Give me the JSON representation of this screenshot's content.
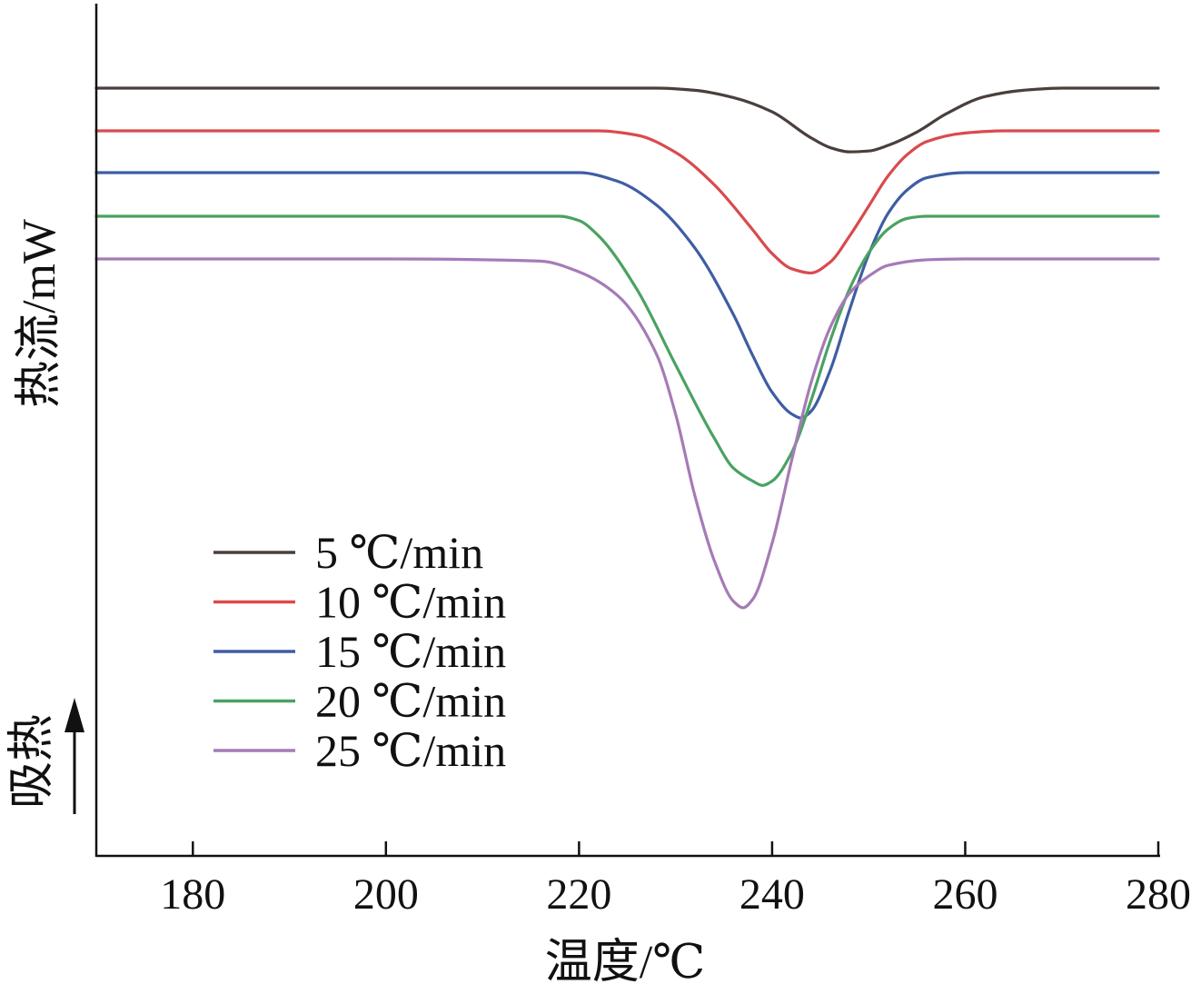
{
  "chart_data": {
    "type": "line",
    "xlabel": "温度/℃",
    "ylabel": "热流/mW",
    "endotherm_label": "吸热",
    "xlim": [
      170,
      280
    ],
    "x_ticks": [
      180,
      200,
      220,
      240,
      260,
      280
    ],
    "x_tick_labels": [
      "180",
      "200",
      "220",
      "240",
      "260",
      "280"
    ],
    "y_ticks_shown": false,
    "grid": false,
    "legend_position": "lower-left",
    "series": [
      {
        "name": "5 ℃/min",
        "color": "#4a3f3c",
        "x": [
          170,
          200,
          220,
          228,
          232,
          236,
          240,
          244,
          246,
          248,
          250,
          252,
          255,
          258,
          262,
          266,
          270,
          280
        ],
        "y": [
          0,
          0,
          0,
          0,
          -0.05,
          -0.22,
          -0.55,
          -1.15,
          -1.38,
          -1.48,
          -1.46,
          -1.33,
          -1.02,
          -0.6,
          -0.2,
          -0.05,
          0,
          0
        ]
      },
      {
        "name": "10 ℃/min",
        "color": "#d94a4d",
        "x": [
          170,
          200,
          222,
          226,
          230,
          234,
          238,
          240,
          242,
          244,
          246,
          248,
          250,
          252,
          254,
          256,
          260,
          264,
          270,
          280
        ],
        "y": [
          0,
          0,
          0,
          -0.1,
          -0.5,
          -1.25,
          -2.3,
          -2.85,
          -3.2,
          -3.3,
          -3.05,
          -2.45,
          -1.75,
          -1.05,
          -0.55,
          -0.25,
          -0.05,
          0,
          0,
          0
        ]
      },
      {
        "name": "15 ℃/min",
        "color": "#3f5da4",
        "x": [
          170,
          200,
          220,
          224,
          228,
          232,
          236,
          238,
          240,
          242,
          243,
          244,
          246,
          248,
          250,
          252,
          254,
          256,
          260,
          265,
          280
        ],
        "y": [
          0,
          0,
          0,
          -0.2,
          -0.75,
          -1.75,
          -3.3,
          -4.25,
          -5.1,
          -5.6,
          -5.7,
          -5.55,
          -4.6,
          -3.2,
          -1.9,
          -0.95,
          -0.4,
          -0.12,
          0,
          0,
          0
        ]
      },
      {
        "name": "20 ℃/min",
        "color": "#4aa261",
        "x": [
          170,
          200,
          218,
          220,
          222,
          226,
          230,
          234,
          236,
          238,
          239,
          240,
          242,
          244,
          246,
          248,
          250,
          252,
          254,
          256,
          260,
          270,
          280
        ],
        "y": [
          0,
          0,
          0,
          -0.1,
          -0.45,
          -1.7,
          -3.45,
          -5.15,
          -5.85,
          -6.15,
          -6.25,
          -6.15,
          -5.5,
          -4.3,
          -2.9,
          -1.7,
          -0.85,
          -0.3,
          -0.05,
          0,
          0,
          0,
          0
        ]
      },
      {
        "name": "25 ℃/min",
        "color": "#a57bb6",
        "x": [
          170,
          200,
          216,
          220,
          224,
          228,
          230,
          232,
          234,
          236,
          237,
          238,
          240,
          242,
          244,
          246,
          248,
          250,
          252,
          256,
          260,
          270,
          280
        ],
        "y": [
          0,
          0,
          -0.05,
          -0.3,
          -0.85,
          -2.2,
          -3.6,
          -5.5,
          -7.0,
          -7.95,
          -8.1,
          -7.9,
          -6.6,
          -4.7,
          -2.9,
          -1.6,
          -0.8,
          -0.4,
          -0.15,
          -0.02,
          0,
          0,
          0
        ]
      }
    ]
  }
}
